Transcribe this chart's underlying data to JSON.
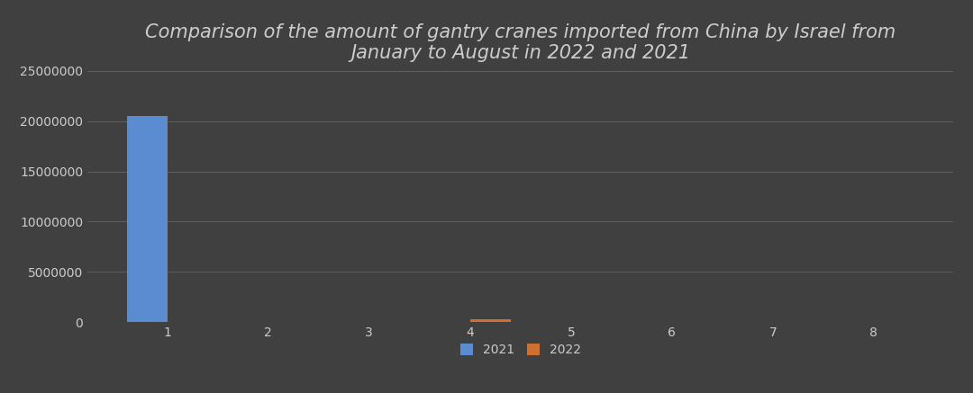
{
  "title": "Comparison of the amount of gantry cranes imported from China by Israel from\nJanuary to August in 2022 and 2021",
  "months": [
    1,
    2,
    3,
    4,
    5,
    6,
    7,
    8
  ],
  "values_2021": [
    20500000,
    0,
    0,
    0,
    0,
    0,
    0,
    0
  ],
  "values_2022": [
    0,
    0,
    50000,
    300000,
    0,
    0,
    30000,
    0
  ],
  "color_2021": "#5b8bd0",
  "color_2022": "#d07030",
  "background_color": "#404040",
  "axes_bg_color": "#404040",
  "text_color": "#cccccc",
  "grid_color": "#666666",
  "ylim": [
    0,
    25000000
  ],
  "yticks": [
    0,
    5000000,
    10000000,
    15000000,
    20000000,
    25000000
  ],
  "bar_width": 0.4,
  "legend_labels": [
    "2021",
    "2022"
  ],
  "title_fontsize": 15,
  "tick_fontsize": 10,
  "legend_fontsize": 10
}
